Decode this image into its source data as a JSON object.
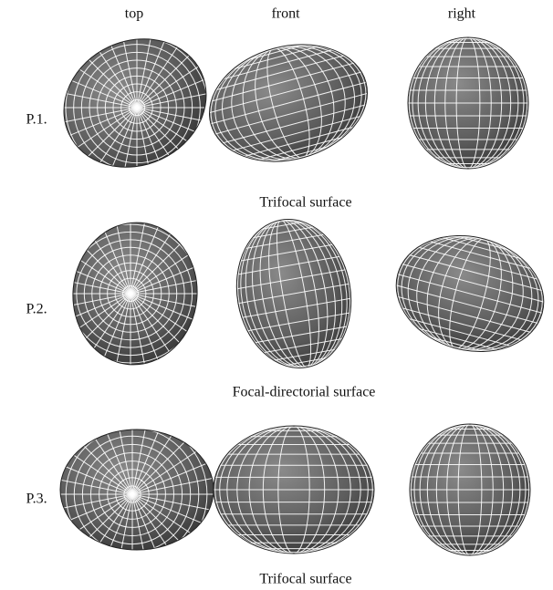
{
  "columns": [
    "top",
    "front",
    "right"
  ],
  "rows": [
    {
      "label": "P.1.",
      "caption": "Trifocal surface"
    },
    {
      "label": "P.2.",
      "caption": "Focal-directorial surface"
    },
    {
      "label": "P.3.",
      "caption": "Trifocal surface"
    }
  ]
}
